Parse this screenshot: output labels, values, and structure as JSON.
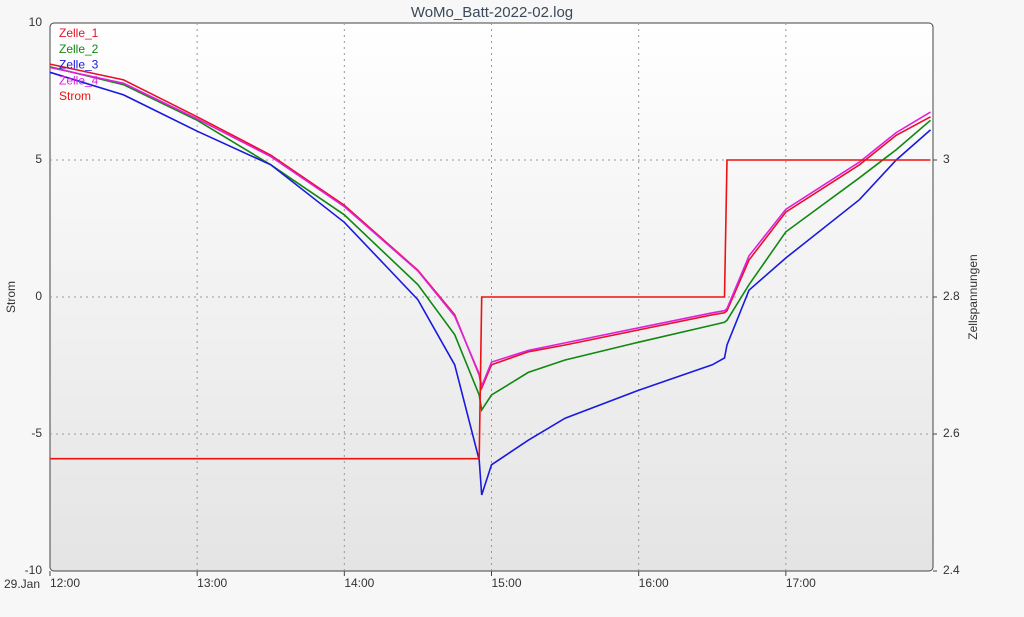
{
  "chart_data": {
    "type": "line",
    "title": "WoMo_Batt-2022-02.log",
    "y_label": "Strom",
    "y2_label": "Zellspannungen",
    "x_date_label": "29.Jan",
    "x": [
      "12:00",
      "12:30",
      "13:00",
      "13:30",
      "14:00",
      "14:30",
      "14:45",
      "14:55",
      "14:56",
      "15:00",
      "15:15",
      "15:30",
      "16:00",
      "16:30",
      "16:35",
      "16:36",
      "16:45",
      "17:00",
      "17:30",
      "17:45",
      "17:59"
    ],
    "xlim": [
      "12:00",
      "18:00"
    ],
    "xticks": [
      "12:00",
      "13:00",
      "14:00",
      "15:00",
      "16:00",
      "17:00"
    ],
    "ylim": [
      -10,
      10
    ],
    "yticks": [
      -10,
      -5,
      0,
      5,
      10
    ],
    "y2lim": [
      2.4,
      3.2
    ],
    "y2ticks": [
      2.4,
      2.6,
      2.8,
      3
    ],
    "grid": true,
    "legend": "top-left",
    "series": [
      {
        "name": "Zelle_1",
        "color": "#e8102a",
        "axis": "y2",
        "values": [
          3.14,
          3.117,
          3.063,
          3.007,
          2.934,
          2.839,
          2.774,
          2.686,
          2.667,
          2.701,
          2.72,
          2.73,
          2.752,
          2.774,
          2.777,
          2.78,
          2.854,
          2.924,
          2.993,
          3.036,
          3.063
        ]
      },
      {
        "name": "Zelle_2",
        "color": "#118811",
        "axis": "y2",
        "values": [
          3.136,
          3.11,
          3.058,
          2.993,
          2.92,
          2.818,
          2.745,
          2.657,
          2.635,
          2.657,
          2.69,
          2.708,
          2.734,
          2.759,
          2.763,
          2.766,
          2.818,
          2.895,
          2.974,
          3.015,
          3.058
        ]
      },
      {
        "name": "Zelle_3",
        "color": "#1a1adf",
        "axis": "y2",
        "values": [
          3.128,
          3.095,
          3.042,
          2.993,
          2.909,
          2.796,
          2.701,
          2.562,
          2.511,
          2.555,
          2.591,
          2.623,
          2.664,
          2.701,
          2.711,
          2.73,
          2.81,
          2.857,
          2.942,
          3.0,
          3.044
        ]
      },
      {
        "name": "Zelle_4",
        "color": "#dd22dd",
        "axis": "y2",
        "values": [
          3.135,
          3.112,
          3.06,
          3.005,
          2.932,
          2.838,
          2.772,
          2.688,
          2.67,
          2.705,
          2.722,
          2.733,
          2.755,
          2.777,
          2.78,
          2.783,
          2.86,
          2.928,
          2.997,
          3.04,
          3.07
        ]
      },
      {
        "name": "Strom",
        "color": "#ee1111",
        "values": [
          -5.9,
          -5.9,
          -5.9,
          -5.9,
          -5.9,
          -5.9,
          -5.9,
          -5.9,
          0,
          0,
          0,
          0,
          0,
          0,
          0,
          5,
          5,
          5,
          5,
          5,
          5
        ]
      }
    ]
  }
}
